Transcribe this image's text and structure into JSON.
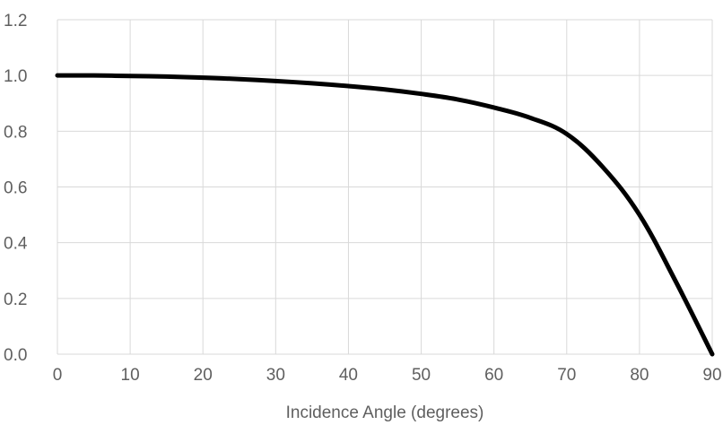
{
  "chart_data": {
    "type": "line",
    "title": "",
    "xlabel": "Incidence Angle (degrees)",
    "ylabel": "",
    "xlim": [
      0,
      90
    ],
    "ylim": [
      0,
      1.2
    ],
    "x_ticks": [
      0,
      10,
      20,
      30,
      40,
      50,
      60,
      70,
      80,
      90
    ],
    "x_tick_labels": [
      "0",
      "10",
      "20",
      "30",
      "40",
      "50",
      "60",
      "70",
      "80",
      "90"
    ],
    "y_ticks": [
      0,
      0.2,
      0.4,
      0.6,
      0.8,
      1.0,
      1.2
    ],
    "y_tick_labels": [
      "0.0",
      "0.2",
      "0.4",
      "0.6",
      "0.8",
      "1.0",
      "1.2"
    ],
    "grid": true,
    "series": [
      {
        "color": "#000000",
        "x": [
          0,
          5,
          10,
          15,
          20,
          25,
          30,
          35,
          40,
          45,
          50,
          55,
          60,
          65,
          70,
          75,
          80,
          85,
          90
        ],
        "y": [
          1.0,
          1.0,
          0.998,
          0.996,
          0.992,
          0.987,
          0.98,
          0.972,
          0.962,
          0.95,
          0.934,
          0.914,
          0.885,
          0.848,
          0.79,
          0.67,
          0.5,
          0.26,
          0.0
        ]
      }
    ]
  }
}
